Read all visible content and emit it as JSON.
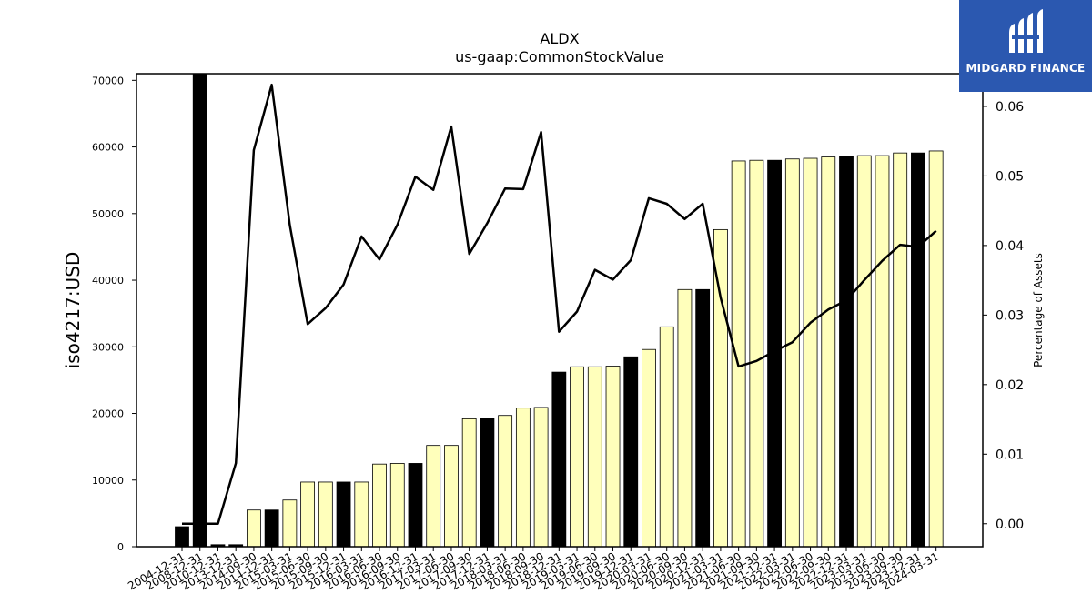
{
  "chart_data": {
    "type": "bar",
    "title": "ALDX",
    "subtitle": "us-gaap:CommonStockValue",
    "ylabel": "iso4217:USD",
    "y2label": "Percentage of Assets",
    "ylim": [
      0,
      71000
    ],
    "y2lim": [
      -0.0033,
      0.0647
    ],
    "yticks": [
      0,
      10000,
      20000,
      30000,
      40000,
      50000,
      60000,
      70000
    ],
    "y2ticks": [
      "0.00",
      "0.01",
      "0.02",
      "0.03",
      "0.04",
      "0.05",
      "0.06"
    ],
    "categories": [
      "2004-12-31",
      "2008-12-31",
      "2010-12-31",
      "2013-12-31",
      "2014-09-30",
      "2014-12-31",
      "2015-03-31",
      "2015-06-30",
      "2015-09-30",
      "2015-12-31",
      "2016-03-31",
      "2016-06-30",
      "2016-09-30",
      "2016-12-31",
      "2017-03-31",
      "2017-06-30",
      "2017-09-30",
      "2017-12-31",
      "2018-03-31",
      "2018-06-30",
      "2018-09-30",
      "2018-12-31",
      "2019-03-31",
      "2019-06-30",
      "2019-09-30",
      "2019-12-31",
      "2020-03-31",
      "2020-06-30",
      "2020-09-30",
      "2020-12-31",
      "2021-03-31",
      "2021-06-30",
      "2021-09-30",
      "2021-12-31",
      "2022-03-31",
      "2022-06-30",
      "2022-09-30",
      "2022-12-31",
      "2023-03-31",
      "2023-06-30",
      "2023-09-30",
      "2023-12-31",
      "2024-03-31"
    ],
    "series": [
      {
        "type": "bar",
        "values": [
          3000,
          71000,
          300,
          300,
          5500,
          5500,
          7000,
          9700,
          9700,
          9700,
          9700,
          12400,
          12500,
          12500,
          15200,
          15200,
          19200,
          19200,
          19700,
          20800,
          20900,
          26200,
          27000,
          27000,
          27100,
          28500,
          29600,
          33000,
          38600,
          38600,
          47600,
          57900,
          58000,
          58000,
          58200,
          58300,
          58500,
          58600,
          58700,
          58700,
          59100,
          59100,
          59400
        ],
        "colors": [
          "#000000",
          "#000000",
          "#000000",
          "#000000",
          "#ffffbb",
          "#000000",
          "#ffffbb",
          "#ffffbb",
          "#ffffbb",
          "#000000",
          "#ffffbb",
          "#ffffbb",
          "#ffffbb",
          "#000000",
          "#ffffbb",
          "#ffffbb",
          "#ffffbb",
          "#000000",
          "#ffffbb",
          "#ffffbb",
          "#ffffbb",
          "#000000",
          "#ffffbb",
          "#ffffbb",
          "#ffffbb",
          "#000000",
          "#ffffbb",
          "#ffffbb",
          "#ffffbb",
          "#000000",
          "#ffffbb",
          "#ffffbb",
          "#ffffbb",
          "#000000",
          "#ffffbb",
          "#ffffbb",
          "#ffffbb",
          "#000000",
          "#ffffbb",
          "#ffffbb",
          "#ffffbb",
          "#000000",
          "#ffffbb"
        ]
      },
      {
        "type": "line",
        "axis": "right",
        "values": [
          0.0,
          0.0,
          0.0,
          0.0087,
          0.0537,
          0.0631,
          0.043,
          0.0287,
          0.031,
          0.0344,
          0.0413,
          0.038,
          0.043,
          0.0499,
          0.048,
          0.0571,
          0.0388,
          0.0432,
          0.0482,
          0.0481,
          0.0563,
          0.0276,
          0.0305,
          0.0365,
          0.0351,
          0.0379,
          0.0468,
          0.046,
          0.0438,
          0.046,
          0.0325,
          0.0226,
          0.0234,
          0.0248,
          0.0261,
          0.0289,
          0.0308,
          0.0321,
          0.035,
          0.0378,
          0.0401,
          0.0398,
          0.0421
        ]
      }
    ],
    "bar_edge_color": "#000000",
    "line_color": "#000000",
    "grid": false,
    "legend": "none"
  },
  "logo": {
    "text": "MIDGARD FINANCE",
    "background": "#2b58b0"
  }
}
